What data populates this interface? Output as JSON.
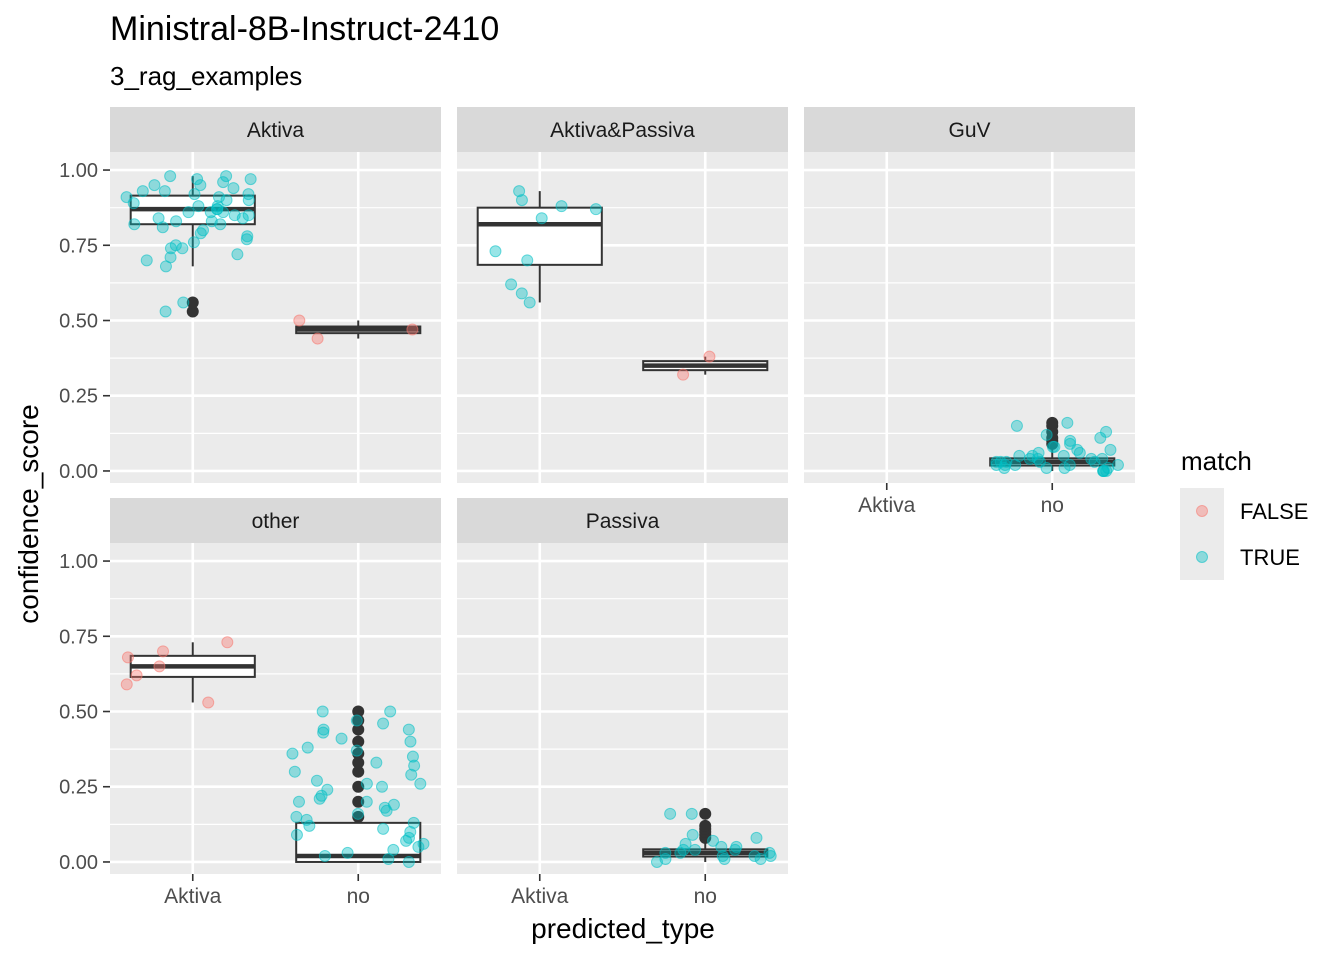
{
  "chart_data": {
    "type": "boxplot",
    "title": "Ministral-8B-Instruct-2410",
    "subtitle": "3_rag_examples",
    "xlabel": "predicted_type",
    "ylabel": "confidence_score",
    "ylim": [
      -0.04,
      1.06
    ],
    "y_ticks": [
      "0.00",
      "0.25",
      "0.50",
      "0.75",
      "1.00"
    ],
    "x_categories": [
      "Aktiva",
      "no"
    ],
    "legend": {
      "title": "match",
      "position": "right",
      "entries": [
        {
          "label": "FALSE",
          "color": "#F8766D"
        },
        {
          "label": "TRUE",
          "color": "#00BFC4"
        }
      ]
    },
    "colors": {
      "FALSE": "#F8766D",
      "TRUE": "#00BFC4",
      "panel_bg": "#EBEBEB",
      "strip_bg": "#D9D9D9"
    },
    "panels": [
      {
        "name": "Aktiva",
        "boxes": [
          {
            "category": "Aktiva",
            "q1": 0.82,
            "median": 0.87,
            "q3": 0.915,
            "whisker_low": 0.68,
            "whisker_high": 0.98,
            "outliers": [
              0.53,
              0.56
            ]
          },
          {
            "category": "no",
            "q1": 0.458,
            "median": 0.47,
            "q3": 0.48,
            "whisker_low": 0.44,
            "whisker_high": 0.5,
            "outliers": []
          }
        ],
        "points": [
          {
            "category": "Aktiva",
            "match": "TRUE",
            "values": [
              0.91,
              0.92,
              0.93,
              0.95,
              0.96,
              0.97,
              0.98,
              0.98,
              0.9,
              0.88,
              0.87,
              0.86,
              0.85,
              0.84,
              0.83,
              0.82,
              0.91,
              0.89,
              0.87,
              0.86,
              0.85,
              0.94,
              0.93,
              0.92,
              0.9,
              0.88,
              0.83,
              0.8,
              0.78,
              0.77,
              0.75,
              0.74,
              0.72,
              0.71,
              0.7,
              0.68,
              0.56,
              0.53,
              0.97,
              0.95,
              0.86,
              0.84,
              0.82,
              0.81,
              0.79,
              0.76,
              0.74
            ]
          },
          {
            "category": "no",
            "match": "FALSE",
            "values": [
              0.44,
              0.47,
              0.5
            ]
          }
        ]
      },
      {
        "name": "Aktiva&Passiva",
        "boxes": [
          {
            "category": "Aktiva",
            "q1": 0.685,
            "median": 0.82,
            "q3": 0.875,
            "whisker_low": 0.56,
            "whisker_high": 0.93,
            "outliers": []
          },
          {
            "category": "no",
            "q1": 0.335,
            "median": 0.35,
            "q3": 0.365,
            "whisker_low": 0.32,
            "whisker_high": 0.38,
            "outliers": []
          }
        ],
        "points": [
          {
            "category": "Aktiva",
            "match": "TRUE",
            "values": [
              0.9,
              0.93,
              0.88,
              0.87,
              0.84,
              0.73,
              0.7,
              0.62,
              0.59,
              0.56
            ]
          },
          {
            "category": "no",
            "match": "FALSE",
            "values": [
              0.32,
              0.38
            ]
          }
        ]
      },
      {
        "name": "GuV",
        "boxes": [
          {
            "category": "no",
            "q1": 0.018,
            "median": 0.03,
            "q3": 0.042,
            "whisker_low": 0.0,
            "whisker_high": 0.08,
            "outliers": [
              0.09,
              0.1,
              0.11,
              0.13,
              0.15,
              0.16
            ]
          }
        ],
        "points": [
          {
            "category": "no",
            "match": "TRUE",
            "values": [
              0.16,
              0.15,
              0.13,
              0.12,
              0.11,
              0.1,
              0.09,
              0.08,
              0.08,
              0.07,
              0.07,
              0.06,
              0.06,
              0.05,
              0.05,
              0.05,
              0.04,
              0.04,
              0.04,
              0.04,
              0.03,
              0.03,
              0.03,
              0.03,
              0.03,
              0.02,
              0.02,
              0.02,
              0.02,
              0.02,
              0.01,
              0.01,
              0.01,
              0.01,
              0.0,
              0.0,
              0.0,
              0.0
            ]
          }
        ]
      },
      {
        "name": "other",
        "boxes": [
          {
            "category": "Aktiva",
            "q1": 0.615,
            "median": 0.65,
            "q3": 0.685,
            "whisker_low": 0.53,
            "whisker_high": 0.73,
            "outliers": []
          },
          {
            "category": "no",
            "q1": 0.0,
            "median": 0.02,
            "q3": 0.13,
            "whisker_low": 0.0,
            "whisker_high": 0.13,
            "outliers": [
              0.15,
              0.2,
              0.25,
              0.3,
              0.33,
              0.36,
              0.4,
              0.44,
              0.47,
              0.5
            ]
          }
        ],
        "points": [
          {
            "category": "Aktiva",
            "match": "FALSE",
            "values": [
              0.73,
              0.7,
              0.68,
              0.65,
              0.62,
              0.59,
              0.53
            ]
          },
          {
            "category": "no",
            "match": "TRUE",
            "values": [
              0.5,
              0.5,
              0.47,
              0.46,
              0.44,
              0.44,
              0.43,
              0.41,
              0.4,
              0.38,
              0.37,
              0.36,
              0.35,
              0.33,
              0.32,
              0.3,
              0.29,
              0.27,
              0.26,
              0.26,
              0.25,
              0.24,
              0.22,
              0.21,
              0.2,
              0.2,
              0.19,
              0.18,
              0.17,
              0.16,
              0.15,
              0.14,
              0.13,
              0.12,
              0.11,
              0.1,
              0.09,
              0.08,
              0.07,
              0.06,
              0.05,
              0.04,
              0.03,
              0.02,
              0.01,
              0.0
            ]
          }
        ]
      },
      {
        "name": "Passiva",
        "boxes": [
          {
            "category": "no",
            "q1": 0.018,
            "median": 0.03,
            "q3": 0.042,
            "whisker_low": 0.0,
            "whisker_high": 0.07,
            "outliers": [
              0.08,
              0.09,
              0.1,
              0.11,
              0.12,
              0.16
            ]
          }
        ],
        "points": [
          {
            "category": "no",
            "match": "TRUE",
            "values": [
              0.16,
              0.16,
              0.09,
              0.08,
              0.07,
              0.06,
              0.05,
              0.05,
              0.04,
              0.04,
              0.04,
              0.03,
              0.03,
              0.03,
              0.02,
              0.02,
              0.02,
              0.01,
              0.01,
              0.01,
              0.0
            ]
          }
        ]
      }
    ]
  }
}
